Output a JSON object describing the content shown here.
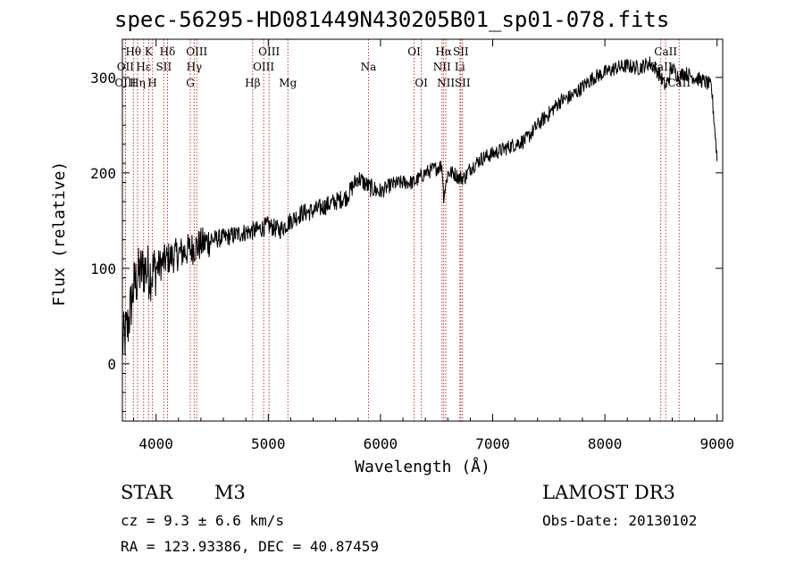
{
  "chart_data": {
    "type": "line",
    "title": "spec-56295-HD081449N430205B01_sp01-078.fits",
    "xlabel": "Wavelength (Å)",
    "ylabel": "Flux (relative)",
    "xlim": [
      3700,
      9050
    ],
    "ylim": [
      -60,
      340
    ],
    "xticks": [
      4000,
      5000,
      6000,
      7000,
      8000,
      9000
    ],
    "yticks": [
      0,
      100,
      200,
      300
    ],
    "grid": false,
    "series": [
      {
        "name": "flux",
        "x": [
          3700,
          3750,
          3800,
          3850,
          3900,
          3950,
          4000,
          4100,
          4200,
          4300,
          4400,
          4500,
          4600,
          4700,
          4800,
          4900,
          5000,
          5100,
          5200,
          5300,
          5400,
          5500,
          5600,
          5700,
          5750,
          5800,
          5850,
          5900,
          6000,
          6100,
          6200,
          6300,
          6400,
          6500,
          6550,
          6563,
          6600,
          6650,
          6700,
          6750,
          6800,
          6900,
          7000,
          7100,
          7200,
          7300,
          7400,
          7500,
          7600,
          7700,
          7800,
          7900,
          8000,
          8100,
          8200,
          8300,
          8400,
          8450,
          8500,
          8542,
          8600,
          8662,
          8700,
          8800,
          8900,
          8950,
          9000
        ],
        "y": [
          20,
          40,
          80,
          95,
          100,
          95,
          100,
          110,
          115,
          120,
          125,
          130,
          132,
          135,
          138,
          140,
          145,
          140,
          150,
          158,
          160,
          165,
          170,
          175,
          185,
          195,
          190,
          185,
          180,
          188,
          190,
          190,
          200,
          205,
          208,
          175,
          200,
          200,
          195,
          195,
          205,
          215,
          220,
          225,
          230,
          235,
          250,
          262,
          275,
          280,
          290,
          300,
          305,
          310,
          312,
          310,
          315,
          310,
          300,
          290,
          310,
          300,
          305,
          300,
          295,
          290,
          215
        ]
      }
    ],
    "line_markers": [
      {
        "label": "Hθ",
        "wavelength": 3798,
        "row": 1
      },
      {
        "label": "OII",
        "wavelength": 3727,
        "row": 2
      },
      {
        "label": "OIII",
        "wavelength": 3727,
        "row": 3
      },
      {
        "label": "K",
        "wavelength": 3934,
        "row": 1
      },
      {
        "label": "Hε",
        "wavelength": 3889,
        "row": 2
      },
      {
        "label": "Hη",
        "wavelength": 3835,
        "row": 3
      },
      {
        "label": "H",
        "wavelength": 3968,
        "row": 3
      },
      {
        "label": "Hδ",
        "wavelength": 4102,
        "row": 1
      },
      {
        "label": "SII",
        "wavelength": 4069,
        "row": 2
      },
      {
        "label": "OIII",
        "wavelength": 4363,
        "row": 1
      },
      {
        "label": "Hγ",
        "wavelength": 4340,
        "row": 2
      },
      {
        "label": "G",
        "wavelength": 4305,
        "row": 3
      },
      {
        "label": "Hβ",
        "wavelength": 4861,
        "row": 3
      },
      {
        "label": "OIII",
        "wavelength": 5007,
        "row": 1
      },
      {
        "label": "OIII",
        "wavelength": 4959,
        "row": 2
      },
      {
        "label": "Mg",
        "wavelength": 5175,
        "row": 3
      },
      {
        "label": "Na",
        "wavelength": 5893,
        "row": 2
      },
      {
        "label": "OI",
        "wavelength": 6300,
        "row": 1
      },
      {
        "label": "OI",
        "wavelength": 6364,
        "row": 3
      },
      {
        "label": "Hα",
        "wavelength": 6563,
        "row": 1
      },
      {
        "label": "NII",
        "wavelength": 6548,
        "row": 2
      },
      {
        "label": "NII",
        "wavelength": 6583,
        "row": 3
      },
      {
        "label": "SII",
        "wavelength": 6716,
        "row": 1
      },
      {
        "label": "Li",
        "wavelength": 6708,
        "row": 2
      },
      {
        "label": "SII",
        "wavelength": 6731,
        "row": 3
      },
      {
        "label": "CaII",
        "wavelength": 8542,
        "row": 1
      },
      {
        "label": "CaII",
        "wavelength": 8498,
        "row": 2
      },
      {
        "label": "CaII",
        "wavelength": 8662,
        "row": 3
      }
    ]
  },
  "info": {
    "star_class": "STAR",
    "subclass": "M3",
    "survey": "LAMOST DR3",
    "cz": "cz = 9.3 ± 6.6 km/s",
    "obs_date": "Obs-Date: 20130102",
    "coords": "RA = 123.93386, DEC =  40.87459"
  }
}
